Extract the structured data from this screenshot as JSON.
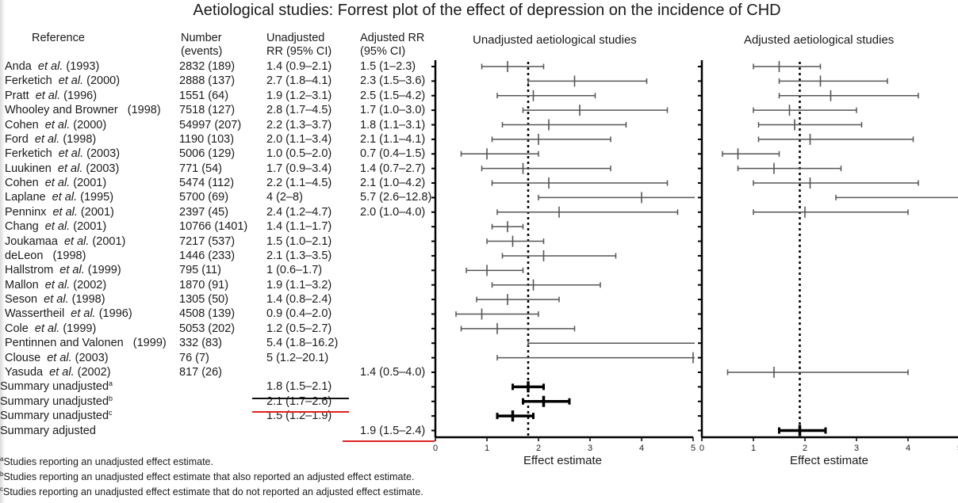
{
  "title": "Aetiological studies: Forrest plot of the effect of depression on the incidence of CHD",
  "table": {
    "headers": {
      "reference": "Reference",
      "number_line1": "Number",
      "number_line2": "(events)",
      "unadj_line1": "Unadjusted",
      "unadj_line2": "RR (95% CI)",
      "adj_line1": "Adjusted RR",
      "adj_line2": "(95% CI)"
    },
    "etal": "et al.",
    "rows": [
      {
        "author": "Anda",
        "etal": true,
        "year": "(1993)",
        "number": "2832 (189)",
        "unadj": "1.4 (0.9–2.1)",
        "adj": "1.5 (1–2.3)"
      },
      {
        "author": "Ferketich",
        "etal": true,
        "year": "(2000)",
        "number": "2888 (137)",
        "unadj": "2.7 (1.8–4.1)",
        "adj": "2.3 (1.5–3.6)"
      },
      {
        "author": "Pratt",
        "etal": true,
        "year": "(1996)",
        "number": "1551 (64)",
        "unadj": "1.9 (1.2–3.1)",
        "adj": "2.5 (1.5–4.2)"
      },
      {
        "author": "Whooley and Browner",
        "etal": false,
        "year": "(1998)",
        "number": "7518 (127)",
        "unadj": "2.8 (1.7–4.5)",
        "adj": "1.7 (1.0–3.0)"
      },
      {
        "author": "Cohen",
        "etal": true,
        "year": "(2000)",
        "number": "54997 (207)",
        "unadj": "2.2 (1.3–3.7)",
        "adj": "1.8 (1.1–3.1)"
      },
      {
        "author": "Ford",
        "etal": true,
        "year": "(1998)",
        "number": "1190 (103)",
        "unadj": "2.0 (1.1–3.4)",
        "adj": "2.1 (1.1–4.1)"
      },
      {
        "author": "Ferketich",
        "etal": true,
        "year": "(2003)",
        "number": "5006 (129)",
        "unadj": "1.0 (0.5–2.0)",
        "adj": "0.7 (0.4–1.5)"
      },
      {
        "author": "Luukinen",
        "etal": true,
        "year": "(2003)",
        "number": "771 (54)",
        "unadj": "1.7 (0.9–3.4)",
        "adj": "1.4 (0.7–2.7)"
      },
      {
        "author": "Cohen",
        "etal": true,
        "year": "(2001)",
        "number": "5474 (112)",
        "unadj": "2.2 (1.1–4.5)",
        "adj": "2.1 (1.0–4.2)"
      },
      {
        "author": "Laplane",
        "etal": true,
        "year": "(1995)",
        "number": "5700 (69)",
        "unadj": "4 (2–8)",
        "adj": "5.7 (2.6–12.8)"
      },
      {
        "author": "Penninx",
        "etal": true,
        "year": "(2001)",
        "number": "2397 (45)",
        "unadj": "2.4 (1.2–4.7)",
        "adj": "2.0 (1.0–4.0)"
      },
      {
        "author": "Chang",
        "etal": true,
        "year": "(2001)",
        "number": "10766 (1401)",
        "unadj": "1.4 (1.1–1.7)",
        "adj": ""
      },
      {
        "author": "Joukamaa",
        "etal": true,
        "year": "(2001)",
        "number": "7217 (537)",
        "unadj": "1.5 (1.0–2.1)",
        "adj": ""
      },
      {
        "author": "deLeon",
        "etal": false,
        "year": "(1998)",
        "number": "1446 (233)",
        "unadj": "2.1 (1.3–3.5)",
        "adj": ""
      },
      {
        "author": "Hallstrom",
        "etal": true,
        "year": "(1999)",
        "number": "795 (11)",
        "unadj": "1 (0.6–1.7)",
        "adj": ""
      },
      {
        "author": "Mallon",
        "etal": true,
        "year": "(2002)",
        "number": "1870 (91)",
        "unadj": "1.9 (1.1–3.2)",
        "adj": ""
      },
      {
        "author": "Seson",
        "etal": true,
        "year": "(1998)",
        "number": "1305 (50)",
        "unadj": "1.4 (0.8–2.4)",
        "adj": ""
      },
      {
        "author": "Wassertheil",
        "etal": true,
        "year": "(1996)",
        "number": "4508 (139)",
        "unadj": "0.9 (0.4–2.0)",
        "adj": ""
      },
      {
        "author": "Cole",
        "etal": true,
        "year": "(1999)",
        "number": "5053 (202)",
        "unadj": "1.2 (0.5–2.7)",
        "adj": ""
      },
      {
        "author": "Pentinnen and Valonen",
        "etal": false,
        "year": "(1999)",
        "number": "332 (83)",
        "unadj": "5.4 (1.8–16.2)",
        "adj": ""
      },
      {
        "author": "Clouse",
        "etal": true,
        "year": "(2003)",
        "number": "76 (7)",
        "unadj": "5 (1.2–20.1)",
        "adj": ""
      },
      {
        "author": "Yasuda",
        "etal": true,
        "year": "(2002)",
        "number": "817 (26)",
        "unadj": "",
        "adj": "1.4 (0.5–4.0)"
      }
    ],
    "summary": [
      {
        "label": "Summary unadjusted",
        "sup": "a",
        "unadj": "1.8 (1.5–2.1)",
        "adj": ""
      },
      {
        "label": "Summary unadjusted",
        "sup": "b",
        "unadj": "2.1 (1.7–2.6)",
        "adj": ""
      },
      {
        "label": "Summary unadjusted",
        "sup": "c",
        "unadj": "1.5 (1.2–1.9)",
        "adj": ""
      },
      {
        "label": "Summary adjusted",
        "sup": "",
        "unadj": "",
        "adj": "1.9 (1.5–2.4)"
      }
    ]
  },
  "footnotes": [
    {
      "sup": "a",
      "text": "Studies reporting an unadjusted effect estimate."
    },
    {
      "sup": "b",
      "text": "Studies reporting an unadjusted effect estimate that also reported an adjusted effect estimate."
    },
    {
      "sup": "c",
      "text": "Studies reporting an unadjusted effect estimate that do not reported an adjusted effect estimate."
    }
  ],
  "colors": {
    "text": "#1a1a1a",
    "study_line": "#555555",
    "summary_line": "#000000",
    "annotation_red": "#e02020"
  },
  "chart_data": [
    {
      "type": "forest",
      "title": "Unadjusted aetiological studies",
      "xlabel": "Effect estimate",
      "xlim": [
        0,
        5
      ],
      "xticks": [
        "0",
        "1",
        "2",
        "3",
        "4",
        "5"
      ],
      "reference_line": 1.8,
      "rows": [
        {
          "est": 1.4,
          "lo": 0.9,
          "hi": 2.1
        },
        {
          "est": 2.7,
          "lo": 1.8,
          "hi": 4.1
        },
        {
          "est": 1.9,
          "lo": 1.2,
          "hi": 3.1
        },
        {
          "est": 2.8,
          "lo": 1.7,
          "hi": 4.5
        },
        {
          "est": 2.2,
          "lo": 1.3,
          "hi": 3.7
        },
        {
          "est": 2.0,
          "lo": 1.1,
          "hi": 3.4
        },
        {
          "est": 1.0,
          "lo": 0.5,
          "hi": 2.0
        },
        {
          "est": 1.7,
          "lo": 0.9,
          "hi": 3.4
        },
        {
          "est": 2.2,
          "lo": 1.1,
          "hi": 4.5
        },
        {
          "est": 4.0,
          "lo": 2.0,
          "hi": 8.0
        },
        {
          "est": 2.4,
          "lo": 1.2,
          "hi": 4.7
        },
        {
          "est": 1.4,
          "lo": 1.1,
          "hi": 1.7
        },
        {
          "est": 1.5,
          "lo": 1.0,
          "hi": 2.1
        },
        {
          "est": 2.1,
          "lo": 1.3,
          "hi": 3.5
        },
        {
          "est": 1.0,
          "lo": 0.6,
          "hi": 1.7
        },
        {
          "est": 1.9,
          "lo": 1.1,
          "hi": 3.2
        },
        {
          "est": 1.4,
          "lo": 0.8,
          "hi": 2.4
        },
        {
          "est": 0.9,
          "lo": 0.4,
          "hi": 2.0
        },
        {
          "est": 1.2,
          "lo": 0.5,
          "hi": 2.7
        },
        {
          "est": 5.4,
          "lo": 1.8,
          "hi": 16.2
        },
        {
          "est": 5.0,
          "lo": 1.2,
          "hi": 20.1
        },
        null,
        {
          "est": 1.8,
          "lo": 1.5,
          "hi": 2.1,
          "summary": true
        },
        {
          "est": 2.1,
          "lo": 1.7,
          "hi": 2.6,
          "summary": true
        },
        {
          "est": 1.5,
          "lo": 1.2,
          "hi": 1.9,
          "summary": true
        },
        null
      ]
    },
    {
      "type": "forest",
      "title": "Adjusted aetiological studies",
      "xlabel": "Effect estimate",
      "xlim": [
        0,
        5
      ],
      "xticks": [
        "0",
        "1",
        "2",
        "3",
        "4",
        "5"
      ],
      "reference_line": 1.9,
      "rows": [
        {
          "est": 1.5,
          "lo": 1.0,
          "hi": 2.3
        },
        {
          "est": 2.3,
          "lo": 1.5,
          "hi": 3.6
        },
        {
          "est": 2.5,
          "lo": 1.5,
          "hi": 4.2
        },
        {
          "est": 1.7,
          "lo": 1.0,
          "hi": 3.0
        },
        {
          "est": 1.8,
          "lo": 1.1,
          "hi": 3.1
        },
        {
          "est": 2.1,
          "lo": 1.1,
          "hi": 4.1
        },
        {
          "est": 0.7,
          "lo": 0.4,
          "hi": 1.5
        },
        {
          "est": 1.4,
          "lo": 0.7,
          "hi": 2.7
        },
        {
          "est": 2.1,
          "lo": 1.0,
          "hi": 4.2
        },
        {
          "est": 5.7,
          "lo": 2.6,
          "hi": 12.8
        },
        {
          "est": 2.0,
          "lo": 1.0,
          "hi": 4.0
        },
        null,
        null,
        null,
        null,
        null,
        null,
        null,
        null,
        null,
        null,
        {
          "est": 1.4,
          "lo": 0.5,
          "hi": 4.0
        },
        null,
        null,
        null,
        {
          "est": 1.9,
          "lo": 1.5,
          "hi": 2.4,
          "summary": true
        }
      ]
    }
  ]
}
